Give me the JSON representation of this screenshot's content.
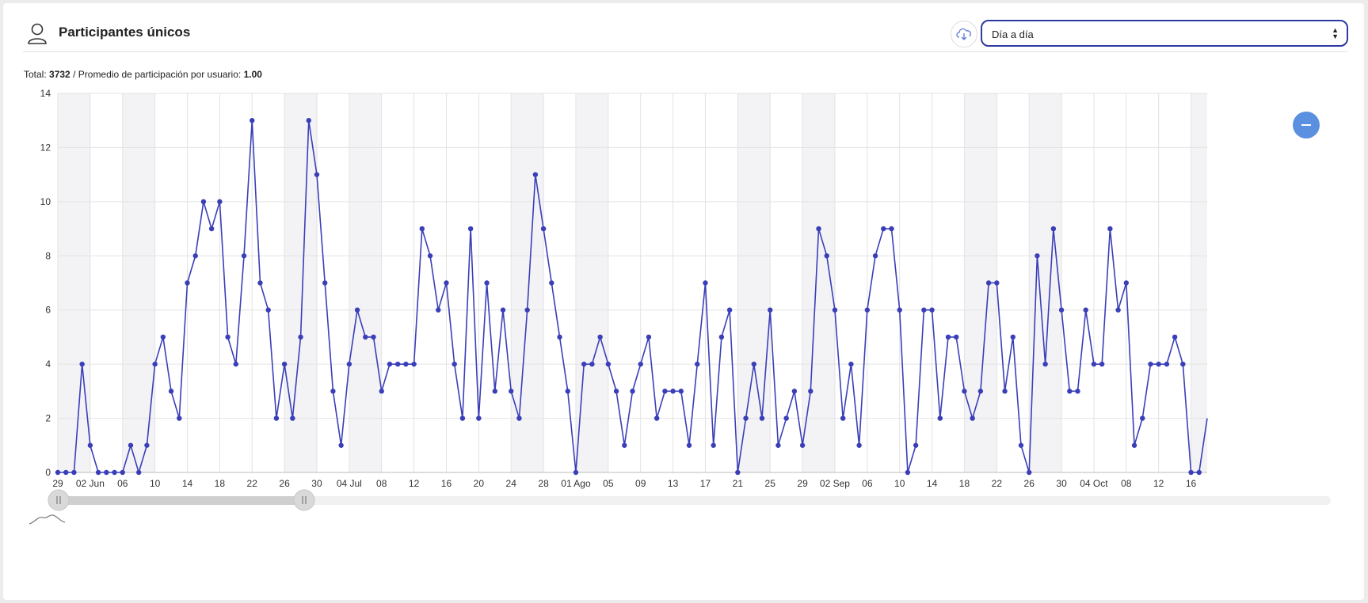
{
  "header": {
    "title": "Participantes únicos",
    "icon": "user-icon",
    "download_icon": "cloud-download-icon",
    "period_select": {
      "value": "Día a día"
    }
  },
  "summary": {
    "total_label": "Total:",
    "total_value": "3732",
    "separator": "/",
    "avg_label": "Promedio de participación por usuario:",
    "avg_value": "1.00"
  },
  "zoom_out_icon": "minus-icon",
  "navigator_icon": "chart-navigator-icon",
  "chart_data": {
    "type": "line",
    "x_start": "29 May",
    "x_step": "1 day",
    "y_ticks": [
      0,
      2,
      4,
      6,
      8,
      10,
      12,
      14
    ],
    "ylim": [
      0,
      14
    ],
    "x_tick_labels": [
      {
        "day": 0,
        "label": "29"
      },
      {
        "day": 4,
        "label": "02 Jun"
      },
      {
        "day": 8,
        "label": "06"
      },
      {
        "day": 12,
        "label": "10"
      },
      {
        "day": 16,
        "label": "14"
      },
      {
        "day": 20,
        "label": "18"
      },
      {
        "day": 24,
        "label": "22"
      },
      {
        "day": 28,
        "label": "26"
      },
      {
        "day": 32,
        "label": "30"
      },
      {
        "day": 36,
        "label": "04 Jul"
      },
      {
        "day": 40,
        "label": "08"
      },
      {
        "day": 44,
        "label": "12"
      },
      {
        "day": 48,
        "label": "16"
      },
      {
        "day": 52,
        "label": "20"
      },
      {
        "day": 56,
        "label": "24"
      },
      {
        "day": 60,
        "label": "28"
      },
      {
        "day": 64,
        "label": "01 Ago"
      },
      {
        "day": 68,
        "label": "05"
      },
      {
        "day": 72,
        "label": "09"
      },
      {
        "day": 76,
        "label": "13"
      },
      {
        "day": 80,
        "label": "17"
      },
      {
        "day": 84,
        "label": "21"
      },
      {
        "day": 88,
        "label": "25"
      },
      {
        "day": 92,
        "label": "29"
      },
      {
        "day": 96,
        "label": "02 Sep"
      },
      {
        "day": 100,
        "label": "06"
      },
      {
        "day": 104,
        "label": "10"
      },
      {
        "day": 108,
        "label": "14"
      },
      {
        "day": 112,
        "label": "18"
      },
      {
        "day": 116,
        "label": "22"
      },
      {
        "day": 120,
        "label": "26"
      },
      {
        "day": 124,
        "label": "30"
      },
      {
        "day": 128,
        "label": "04 Oct"
      },
      {
        "day": 132,
        "label": "08"
      },
      {
        "day": 136,
        "label": "12"
      },
      {
        "day": 140,
        "label": "16"
      }
    ],
    "weekend_bands_days": [
      0,
      8,
      28,
      36,
      56,
      64,
      84,
      92,
      112,
      120,
      140
    ],
    "values": [
      0,
      0,
      0,
      4,
      1,
      0,
      0,
      0,
      0,
      1,
      0,
      1,
      4,
      5,
      3,
      2,
      7,
      8,
      10,
      9,
      10,
      5,
      4,
      8,
      13,
      7,
      6,
      2,
      4,
      2,
      5,
      13,
      11,
      7,
      3,
      1,
      4,
      6,
      5,
      5,
      3,
      4,
      4,
      4,
      4,
      9,
      8,
      6,
      7,
      4,
      2,
      9,
      2,
      7,
      3,
      6,
      3,
      2,
      6,
      11,
      9,
      7,
      5,
      3,
      0,
      4,
      4,
      5,
      4,
      3,
      1,
      3,
      4,
      5,
      2,
      3,
      3,
      3,
      1,
      4,
      7,
      1,
      5,
      6,
      0,
      2,
      4,
      2,
      6,
      1,
      2,
      3,
      1,
      3,
      9,
      8,
      6,
      2,
      4,
      1,
      6,
      8,
      9,
      9,
      6,
      0,
      1,
      6,
      6,
      2,
      5,
      5,
      3,
      2,
      3,
      7,
      7,
      3,
      5,
      1,
      0,
      8,
      4,
      9,
      6,
      3,
      3,
      6,
      4,
      4,
      9,
      6,
      7,
      1,
      2,
      4,
      4,
      4,
      5,
      4,
      0,
      0,
      2
    ],
    "color": "#3a3fb8",
    "grid": true
  }
}
